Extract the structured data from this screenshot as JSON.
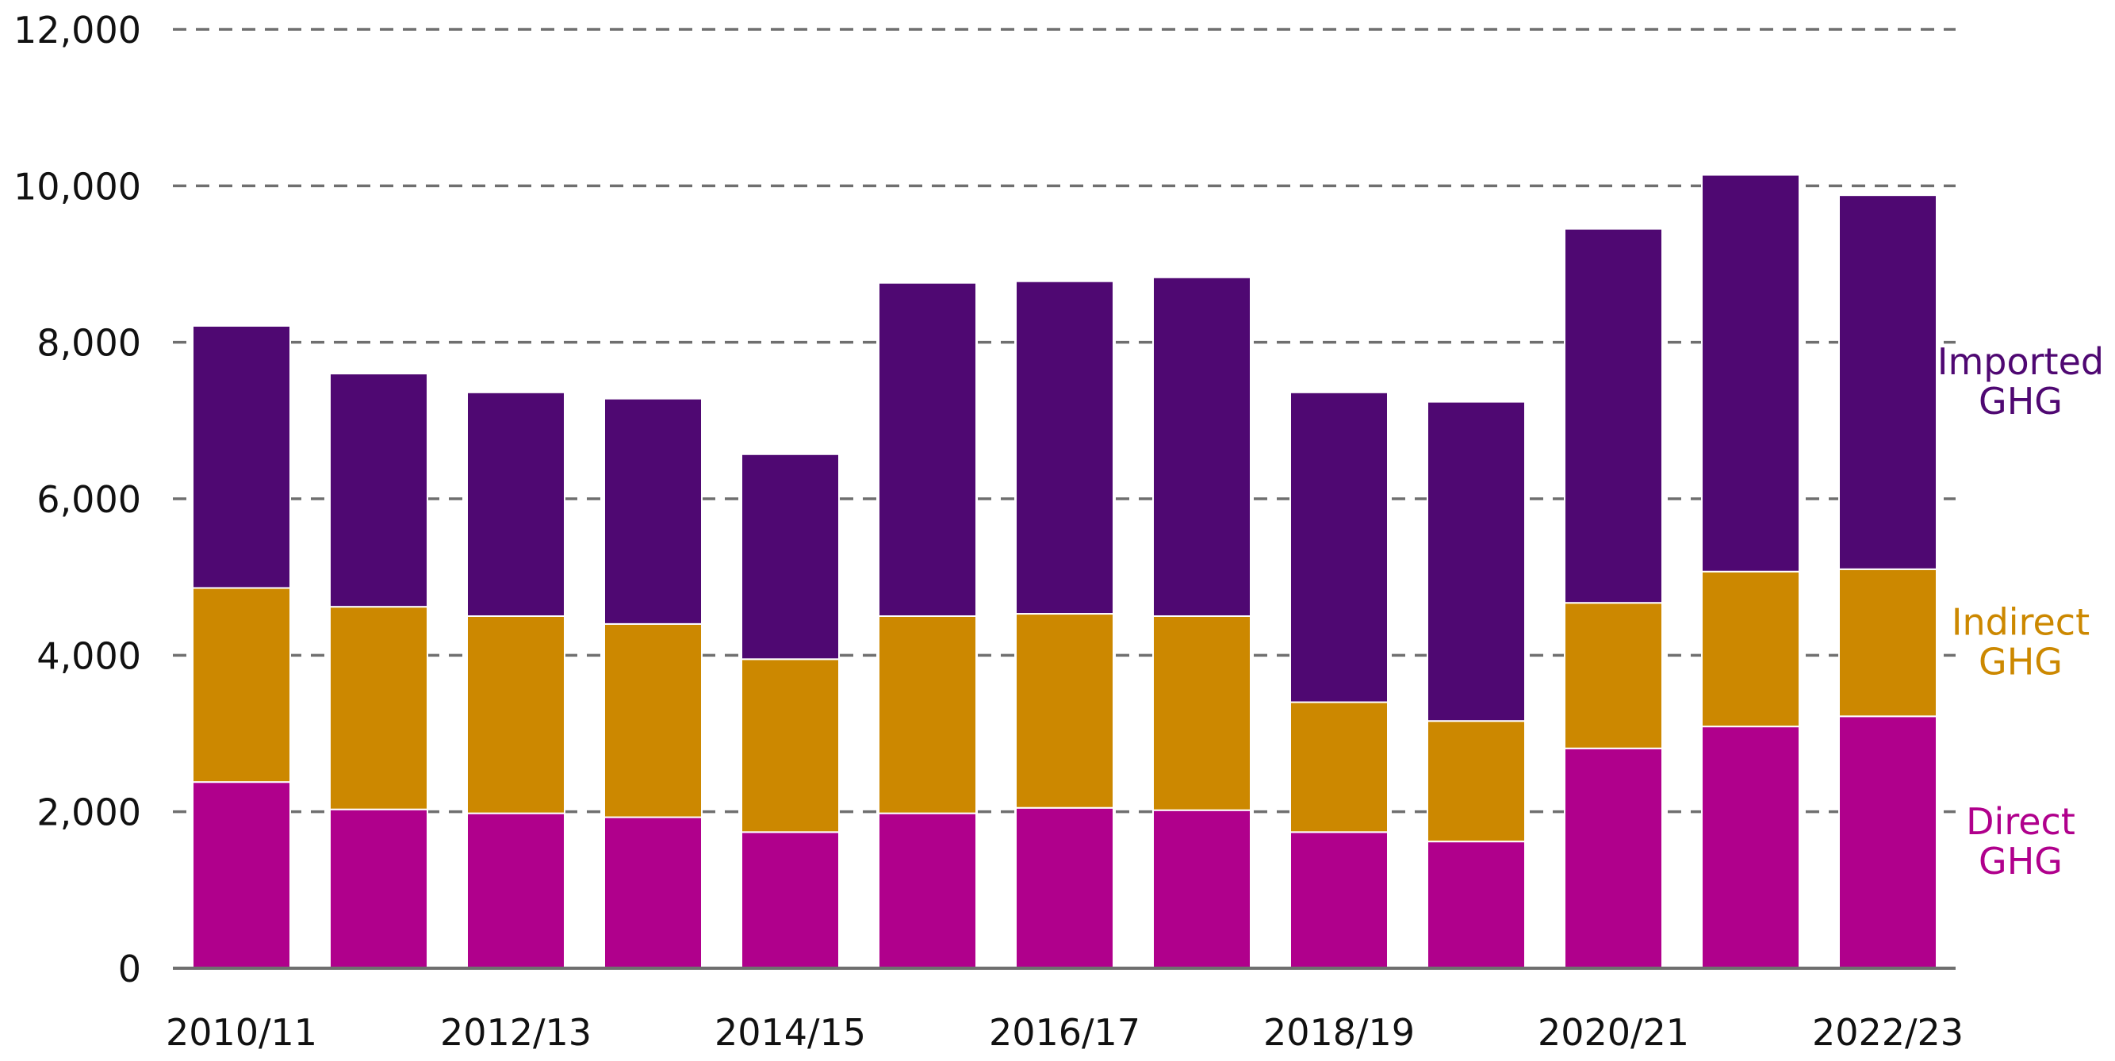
{
  "chart_data": {
    "type": "bar",
    "stacked": true,
    "title": "",
    "xlabel": "",
    "ylabel": "",
    "ylim": [
      0,
      12000
    ],
    "yticks": [
      0,
      2000,
      4000,
      6000,
      8000,
      10000,
      12000
    ],
    "ytick_labels": [
      "0",
      "2,000",
      "4,000",
      "6,000",
      "8,000",
      "10,000",
      "12,000"
    ],
    "grid": "horizontal dashed",
    "categories": [
      "2010/11",
      "2011/12",
      "2012/13",
      "2013/14",
      "2014/15",
      "2015/16",
      "2016/17",
      "2017/18",
      "2018/19",
      "2019/20",
      "2020/21",
      "2021/22",
      "2022/23"
    ],
    "xtick_labels_shown": [
      "2010/11",
      "2012/13",
      "2014/15",
      "2016/17",
      "2018/19",
      "2020/21",
      "2022/23"
    ],
    "series": [
      {
        "name": "Direct GHG",
        "label_lines": [
          "Direct",
          "GHG"
        ],
        "color": "#b0008c",
        "values": [
          2380,
          2030,
          1980,
          1930,
          1740,
          1980,
          2050,
          2020,
          1740,
          1620,
          2810,
          3090,
          3220
        ]
      },
      {
        "name": "Indirect GHG",
        "label_lines": [
          "Indirect",
          "GHG"
        ],
        "color": "#cc8800",
        "values": [
          2480,
          2590,
          2520,
          2470,
          2210,
          2520,
          2480,
          2480,
          1660,
          1540,
          1860,
          1980,
          1880
        ]
      },
      {
        "name": "Imported GHG",
        "label_lines": [
          "Imported",
          "GHG"
        ],
        "color": "#4f0872",
        "values": [
          3350,
          2980,
          2860,
          2880,
          2620,
          4260,
          4250,
          4330,
          3960,
          4080,
          4780,
          5070,
          4780
        ]
      }
    ],
    "legend": "right, inline labels next to last bar"
  }
}
